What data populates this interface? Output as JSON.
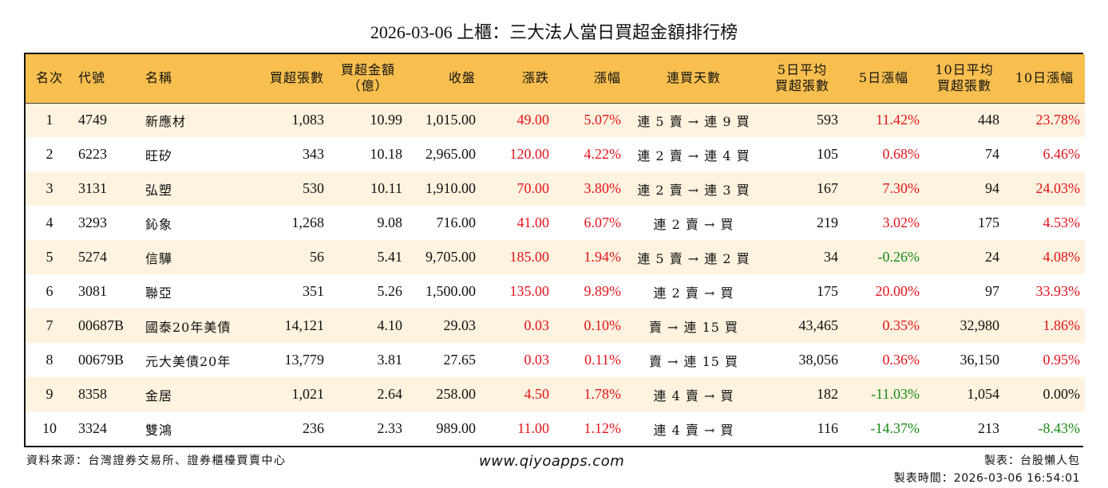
{
  "title": "2026-03-06 上櫃：三大法人當日買超金額排行榜",
  "colors": {
    "header_bg": "#F8BF4F",
    "row_odd_bg": "#FDF3DF",
    "row_even_bg": "#FFFFFF",
    "up": "#E3131B",
    "down": "#178A17"
  },
  "table": {
    "headers": [
      {
        "key": "rank",
        "label": "名次"
      },
      {
        "key": "code",
        "label": "代號"
      },
      {
        "key": "name",
        "label": "名稱"
      },
      {
        "key": "net_buy_lots",
        "label": "買超張數"
      },
      {
        "key": "net_buy_amount",
        "label_line1": "買超金額",
        "label_line2": "（億）"
      },
      {
        "key": "close",
        "label": "收盤"
      },
      {
        "key": "change",
        "label": "漲跌"
      },
      {
        "key": "change_pct",
        "label": "漲幅"
      },
      {
        "key": "streak",
        "label": "連買天數"
      },
      {
        "key": "avg5_lots",
        "label_line1": "5日平均",
        "label_line2": "買超張數"
      },
      {
        "key": "chg5_pct",
        "label": "5日漲幅"
      },
      {
        "key": "avg10_lots",
        "label_line1": "10日平均",
        "label_line2": "買超張數"
      },
      {
        "key": "chg10_pct",
        "label": "10日漲幅"
      }
    ],
    "rows": [
      {
        "rank": "1",
        "code": "4749",
        "name": "新應材",
        "net_buy_lots": "1,083",
        "net_buy_amount": "10.99",
        "close": "1,015.00",
        "change": "49.00",
        "change_pct": "5.07%",
        "streak": "連 5 賣 → 連 9 買",
        "avg5_lots": "593",
        "chg5_pct": "11.42%",
        "avg10_lots": "448",
        "chg10_pct": "23.78%",
        "c5": "red",
        "c10": "red"
      },
      {
        "rank": "2",
        "code": "6223",
        "name": "旺矽",
        "net_buy_lots": "343",
        "net_buy_amount": "10.18",
        "close": "2,965.00",
        "change": "120.00",
        "change_pct": "4.22%",
        "streak": "連 2 賣 → 連 4 買",
        "avg5_lots": "105",
        "chg5_pct": "0.68%",
        "avg10_lots": "74",
        "chg10_pct": "6.46%",
        "c5": "red",
        "c10": "red"
      },
      {
        "rank": "3",
        "code": "3131",
        "name": "弘塑",
        "net_buy_lots": "530",
        "net_buy_amount": "10.11",
        "close": "1,910.00",
        "change": "70.00",
        "change_pct": "3.80%",
        "streak": "連 2 賣 → 連 3 買",
        "avg5_lots": "167",
        "chg5_pct": "7.30%",
        "avg10_lots": "94",
        "chg10_pct": "24.03%",
        "c5": "red",
        "c10": "red"
      },
      {
        "rank": "4",
        "code": "3293",
        "name": "鈊象",
        "net_buy_lots": "1,268",
        "net_buy_amount": "9.08",
        "close": "716.00",
        "change": "41.00",
        "change_pct": "6.07%",
        "streak": "連 2 賣 → 買",
        "avg5_lots": "219",
        "chg5_pct": "3.02%",
        "avg10_lots": "175",
        "chg10_pct": "4.53%",
        "c5": "red",
        "c10": "red"
      },
      {
        "rank": "5",
        "code": "5274",
        "name": "信驊",
        "net_buy_lots": "56",
        "net_buy_amount": "5.41",
        "close": "9,705.00",
        "change": "185.00",
        "change_pct": "1.94%",
        "streak": "連 5 賣 → 連 2 買",
        "avg5_lots": "34",
        "chg5_pct": "-0.26%",
        "avg10_lots": "24",
        "chg10_pct": "4.08%",
        "c5": "green",
        "c10": "red"
      },
      {
        "rank": "6",
        "code": "3081",
        "name": "聯亞",
        "net_buy_lots": "351",
        "net_buy_amount": "5.26",
        "close": "1,500.00",
        "change": "135.00",
        "change_pct": "9.89%",
        "streak": "連 2 賣 → 買",
        "avg5_lots": "175",
        "chg5_pct": "20.00%",
        "avg10_lots": "97",
        "chg10_pct": "33.93%",
        "c5": "red",
        "c10": "red"
      },
      {
        "rank": "7",
        "code": "00687B",
        "name": "國泰20年美債",
        "net_buy_lots": "14,121",
        "net_buy_amount": "4.10",
        "close": "29.03",
        "change": "0.03",
        "change_pct": "0.10%",
        "streak": "賣 → 連 15 買",
        "avg5_lots": "43,465",
        "chg5_pct": "0.35%",
        "avg10_lots": "32,980",
        "chg10_pct": "1.86%",
        "c5": "red",
        "c10": "red"
      },
      {
        "rank": "8",
        "code": "00679B",
        "name": "元大美債20年",
        "net_buy_lots": "13,779",
        "net_buy_amount": "3.81",
        "close": "27.65",
        "change": "0.03",
        "change_pct": "0.11%",
        "streak": "賣 → 連 15 買",
        "avg5_lots": "38,056",
        "chg5_pct": "0.36%",
        "avg10_lots": "36,150",
        "chg10_pct": "0.95%",
        "c5": "red",
        "c10": "red"
      },
      {
        "rank": "9",
        "code": "8358",
        "name": "金居",
        "net_buy_lots": "1,021",
        "net_buy_amount": "2.64",
        "close": "258.00",
        "change": "4.50",
        "change_pct": "1.78%",
        "streak": "連 4 賣 → 買",
        "avg5_lots": "182",
        "chg5_pct": "-11.03%",
        "avg10_lots": "1,054",
        "chg10_pct": "0.00%",
        "c5": "green",
        "c10": "black"
      },
      {
        "rank": "10",
        "code": "3324",
        "name": "雙鴻",
        "net_buy_lots": "236",
        "net_buy_amount": "2.33",
        "close": "989.00",
        "change": "11.00",
        "change_pct": "1.12%",
        "streak": "連 4 賣 → 買",
        "avg5_lots": "116",
        "chg5_pct": "-14.37%",
        "avg10_lots": "213",
        "chg10_pct": "-8.43%",
        "c5": "green",
        "c10": "green"
      }
    ]
  },
  "footer": {
    "source": "資料來源：台灣證券交易所、證券櫃檯買賣中心",
    "website": "www.qiyoapps.com",
    "maker": "製表：台股懶人包",
    "made_time_label": "製表時間：",
    "made_time": "2026-03-06 16:54:01"
  }
}
